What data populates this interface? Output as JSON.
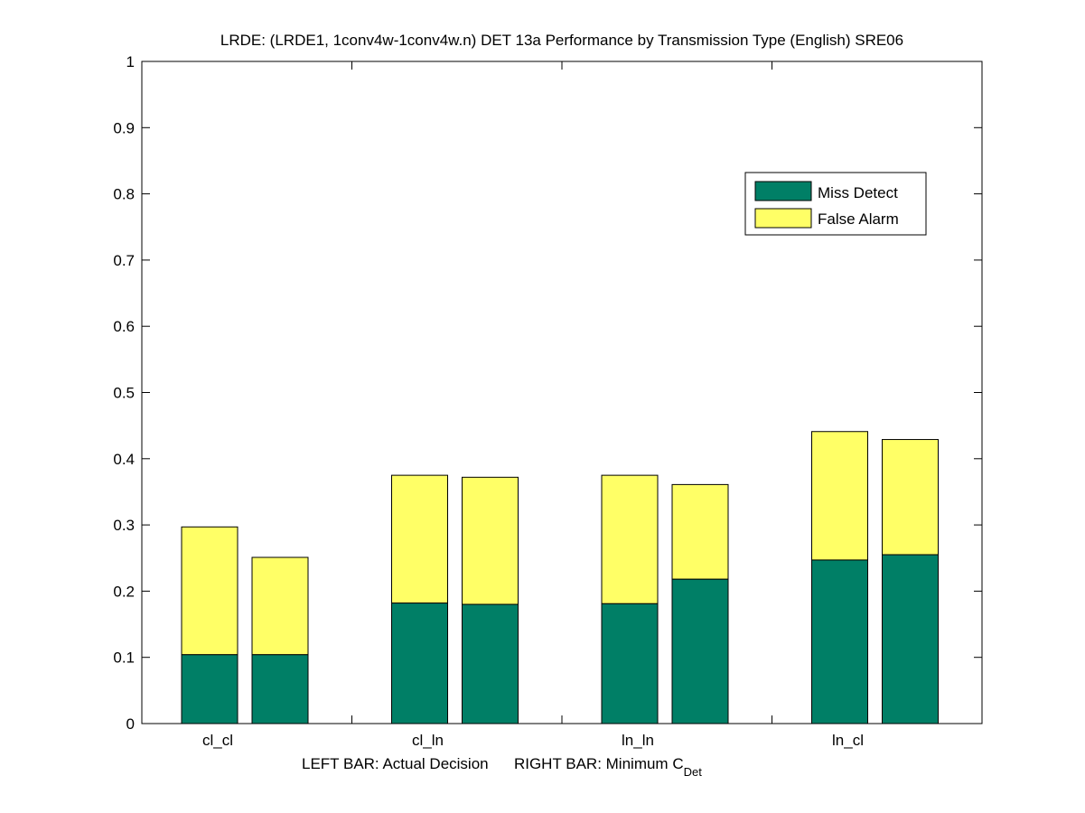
{
  "chart_data": {
    "type": "bar",
    "stacked": true,
    "title": "LRDE: (LRDE1, 1conv4w-1conv4w.n) DET 13a Performance by Transmission Type (English) SRE06",
    "xlabel": {
      "main": "LEFT BAR: Actual Decision      RIGHT BAR: Minimum C",
      "subscript": "Det"
    },
    "ylabel": "",
    "ylim": [
      0,
      1
    ],
    "yticks": [
      "0",
      "0.1",
      "0.2",
      "0.3",
      "0.4",
      "0.5",
      "0.6",
      "0.7",
      "0.8",
      "0.9",
      "1"
    ],
    "categories": [
      "cl_cl",
      "cl_ln",
      "ln_ln",
      "ln_cl"
    ],
    "bar_labels": [
      "Actual Decision",
      "Minimum C_Det"
    ],
    "series": [
      {
        "name": "Miss Detect",
        "color": "#007f66",
        "values": {
          "actual_decision": [
            0.104,
            0.182,
            0.181,
            0.247
          ],
          "minimum_cdet": [
            0.104,
            0.18,
            0.218,
            0.255
          ]
        }
      },
      {
        "name": "False Alarm",
        "color": "#ffff66",
        "values": {
          "actual_decision": [
            0.193,
            0.193,
            0.194,
            0.194
          ],
          "minimum_cdet": [
            0.147,
            0.192,
            0.143,
            0.174
          ]
        }
      }
    ],
    "totals": {
      "actual_decision": [
        0.297,
        0.375,
        0.375,
        0.441
      ],
      "minimum_cdet": [
        0.251,
        0.372,
        0.361,
        0.429
      ]
    },
    "legend": {
      "position": "top-right",
      "entries": [
        "Miss Detect",
        "False Alarm"
      ]
    },
    "grid": false,
    "box": true
  }
}
